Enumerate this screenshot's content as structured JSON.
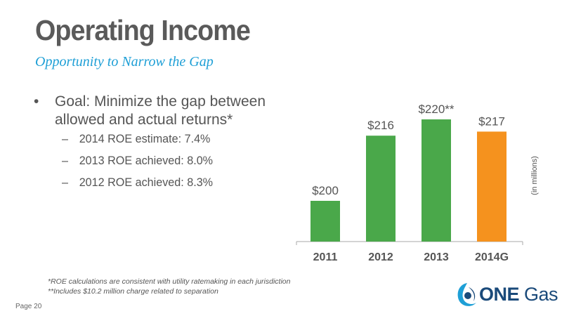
{
  "title": "Operating Income",
  "subtitle": "Opportunity to Narrow the Gap",
  "bullet": {
    "symbol": "•",
    "text": "Goal: Minimize the gap between allowed and actual returns*"
  },
  "sub_bullets": [
    {
      "dash": "–",
      "text": "2014 ROE estimate: 7.4%"
    },
    {
      "dash": "–",
      "text": "2013 ROE achieved: 8.0%"
    },
    {
      "dash": "–",
      "text": "2012 ROE achieved: 8.3%"
    }
  ],
  "footnotes": [
    "*ROE calculations are consistent with utility ratemaking in each jurisdiction",
    "**Includes $10.2 million charge related to separation"
  ],
  "page_label": "Page 20",
  "logo": {
    "word1": "ONE",
    "word2": "Gas"
  },
  "chart_data": {
    "type": "bar",
    "categories": [
      "2011",
      "2012",
      "2013",
      "2014G"
    ],
    "values": [
      200,
      216,
      220,
      217
    ],
    "data_labels": [
      "$200",
      "$216",
      "$220**",
      "$217"
    ],
    "unit_label": "(in millions)",
    "colors": [
      "#4aa84a",
      "#4aa84a",
      "#4aa84a",
      "#f5921e"
    ],
    "axis_color": "#aaaaaa",
    "grid": false
  }
}
